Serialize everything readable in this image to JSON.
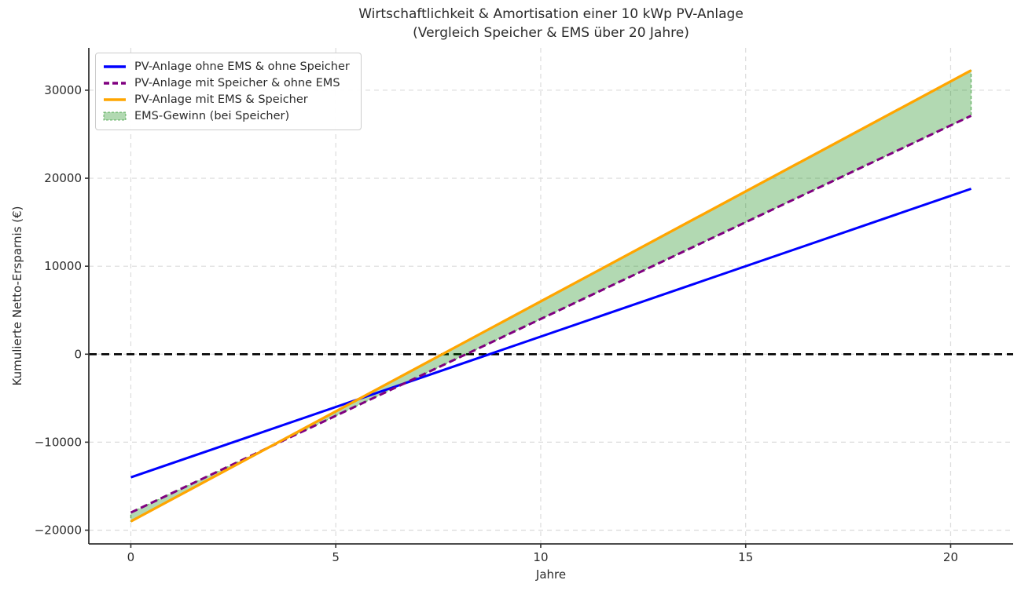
{
  "chart_data": {
    "type": "line",
    "title": "Wirtschaftlichkeit & Amortisation einer 10 kWp PV-Anlage",
    "subtitle": "(Vergleich Speicher & EMS über 20 Jahre)",
    "xlabel": "Jahre",
    "ylabel": "Kumulierte Netto-Ersparnis (€)",
    "xlim": [
      -1.025,
      21.525
    ],
    "ylim": [
      -21562,
      34813
    ],
    "xticks": [
      0,
      5,
      10,
      15,
      20
    ],
    "xtick_labels": [
      "0",
      "5",
      "10",
      "15",
      "20"
    ],
    "yticks": [
      -20000,
      -10000,
      0,
      10000,
      20000,
      30000
    ],
    "ytick_labels": [
      "−20000",
      "−10000",
      "0",
      "10000",
      "20000",
      "30000"
    ],
    "grid": true,
    "grid_linestyle": "dashed",
    "grid_color": "#dcdcdc",
    "legend_position": "upper left",
    "background_color": "#ffffff",
    "axis_color": "#333333",
    "x_years_range": [
      0,
      20.5
    ],
    "series": [
      {
        "label": "PV-Anlage ohne EMS & ohne Speicher",
        "color": "#0000ff",
        "linestyle": "solid",
        "intercept_eur": -14000,
        "slope_eur_per_year": 1600,
        "x": [
          0,
          20.5
        ],
        "values": [
          -14000,
          18800
        ]
      },
      {
        "label": "PV-Anlage mit Speicher & ohne EMS",
        "color": "#800080",
        "linestyle": "dashed",
        "intercept_eur": -18000,
        "slope_eur_per_year": 2200,
        "x": [
          0,
          20.5
        ],
        "values": [
          -18000,
          27100
        ]
      },
      {
        "label": "PV-Anlage mit EMS & Speicher",
        "color": "#ffa500",
        "linestyle": "solid",
        "intercept_eur": -19000,
        "slope_eur_per_year": 2500,
        "x": [
          0,
          20.5
        ],
        "values": [
          -19000,
          32250
        ]
      }
    ],
    "fill_between": {
      "label": "EMS-Gewinn (bei Speicher)",
      "upper_series_index": 2,
      "lower_series_index": 1,
      "fill_color": "rgba(0,128,0,0.30)",
      "edge_color": "rgba(0,128,0,0.55)"
    },
    "zero_line": {
      "value": 0,
      "color": "#000000",
      "linestyle": "dashed"
    }
  }
}
